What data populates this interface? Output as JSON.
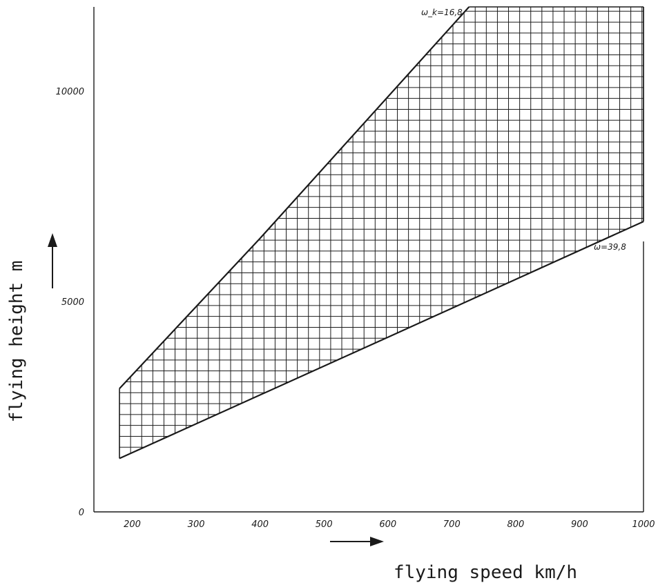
{
  "chart_data": {
    "type": "area",
    "title": "",
    "xlabel": "flying speed  km/h",
    "ylabel": "flying height  m",
    "xlim": [
      140,
      1000
    ],
    "ylim": [
      0,
      12000
    ],
    "x_ticks": [
      "200",
      "300",
      "400",
      "500",
      "600",
      "700",
      "800",
      "900",
      "1000"
    ],
    "y_ticks": [
      "0",
      "5000",
      "10000"
    ],
    "grid": false,
    "fill_pattern": "crosshatch",
    "series": [
      {
        "name": "ω_k=16,8",
        "x": [
          180,
          400,
          727
        ],
        "y": [
          2930,
          6500,
          12000
        ]
      },
      {
        "name": "ω=39,8",
        "x": [
          180,
          600,
          1000
        ],
        "y": [
          1270,
          4150,
          6900
        ]
      }
    ],
    "region": {
      "upper_boundary": "ω_k=16,8",
      "lower_boundary": "ω=39,8",
      "right_edge_x": 1000,
      "top_edge_y": 12000
    },
    "colors": {
      "ink": "#1a1a1a",
      "background": "#ffffff"
    }
  }
}
